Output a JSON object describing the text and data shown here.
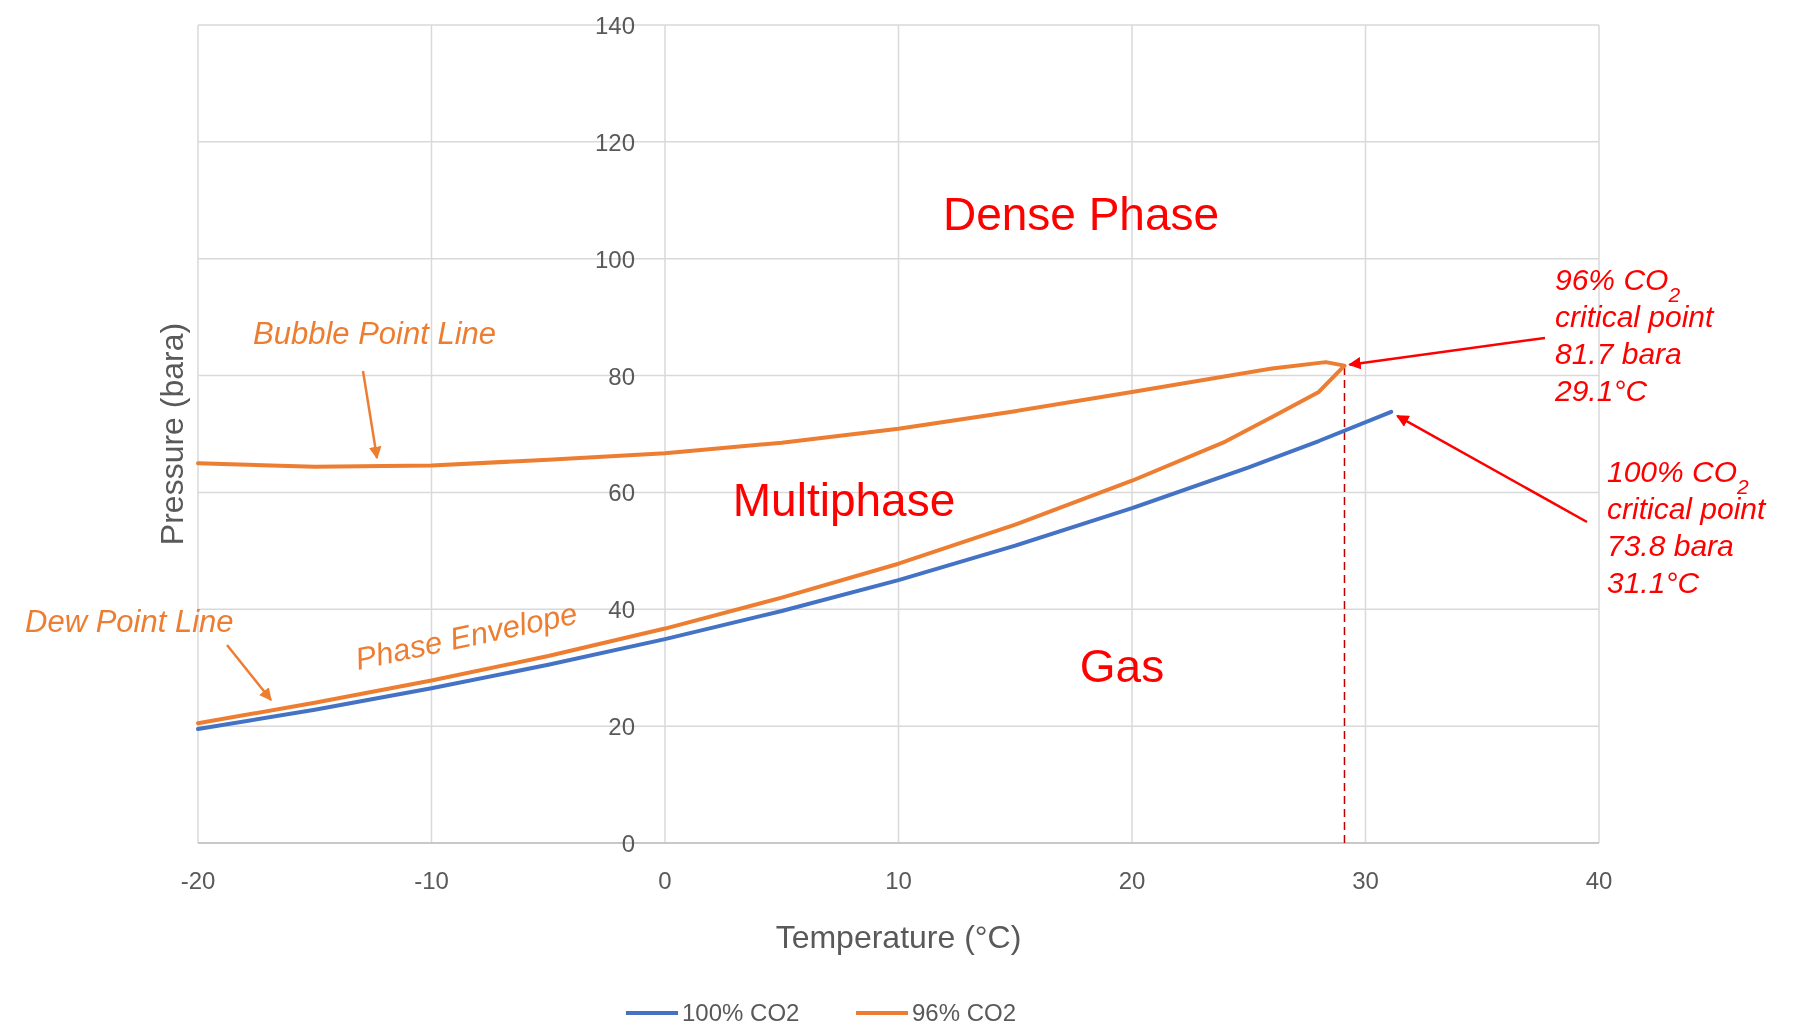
{
  "chart_data": {
    "type": "line",
    "xlabel": "Temperature (°C)",
    "ylabel": "Pressure (bara)",
    "xlim": [
      -20,
      40
    ],
    "xticks": [
      -20,
      -10,
      0,
      10,
      20,
      30,
      40
    ],
    "ylim": [
      0,
      140
    ],
    "yticks": [
      0,
      20,
      40,
      60,
      80,
      100,
      120,
      140
    ],
    "grid": true,
    "legend": "bottom",
    "marker": "none",
    "line_style": "solid",
    "series": [
      {
        "name": "100% CO2",
        "color": "#4472c4",
        "x": [
          -20,
          -15,
          -10,
          -5,
          0,
          5,
          10,
          15,
          20,
          25,
          28,
          31.1
        ],
        "values": [
          19.5,
          22.8,
          26.5,
          30.5,
          34.9,
          39.7,
          45,
          50.9,
          57.3,
          64.3,
          68.8,
          73.8
        ]
      },
      {
        "name": "96% CO2",
        "color": "#ed7d31",
        "x": [
          -20,
          -15,
          -10,
          -5,
          0,
          5,
          10,
          15,
          20,
          24,
          26,
          28,
          29.1,
          28.3,
          26,
          20,
          15,
          10,
          5,
          0,
          -5,
          -10,
          -15,
          -20
        ],
        "values": [
          20.5,
          24,
          27.8,
          32,
          36.7,
          42,
          47.8,
          54.5,
          62,
          68.7,
          72.9,
          77.2,
          81.7,
          82.3,
          81.2,
          77.2,
          73.9,
          70.9,
          68.5,
          66.7,
          65.6,
          64.6,
          64.4,
          65
        ]
      }
    ],
    "ref_lines": [
      {
        "axis": "x",
        "value": 29.1,
        "color": "#c00000",
        "line_style": "dashed"
      }
    ],
    "annotations": [
      "Dense Phase",
      "Multiphase",
      "Gas",
      "Bubble Point Line",
      "Dew Point Line",
      "Phase Envelope",
      {
        "text": "96% CO$_{2}$ critical point 81.7 bara 29.1°C",
        "x": 29.1,
        "y": 81.7
      },
      {
        "text": "100% CO$_{2}$ critical point 73.8 bara 31.1°C",
        "x": 31.1,
        "y": 73.8
      }
    ]
  }
}
